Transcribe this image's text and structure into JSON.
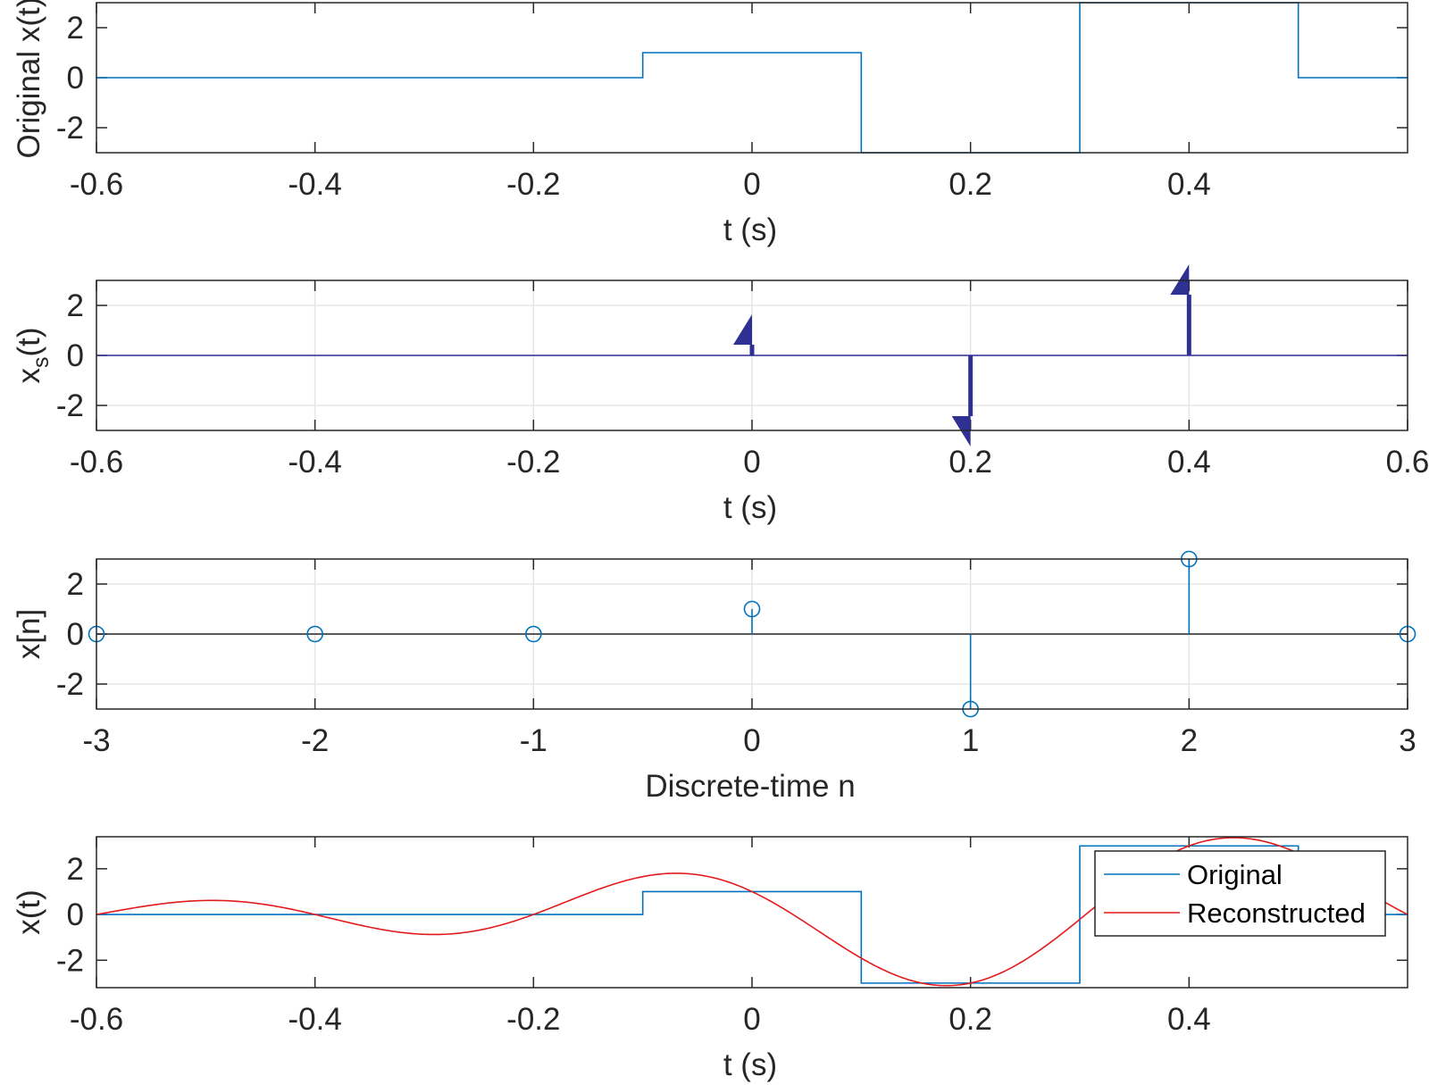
{
  "colors": {
    "original": "#0072BD",
    "reconstructed": "#E31A1C",
    "impulse": "#2E3192",
    "axis": "#262626",
    "grid": "#E6E6E6"
  },
  "chart_data": [
    {
      "type": "line",
      "ylabel": "Original x(t)",
      "xlabel": "t (s)",
      "xlim": [
        -0.6,
        0.6
      ],
      "ylim": [
        -3,
        3
      ],
      "xticks": [
        -0.6,
        -0.4,
        -0.2,
        0,
        0.2,
        0.4
      ],
      "xtick_labels": [
        "-0.6",
        "-0.4",
        "-0.2",
        "0",
        "0.2",
        "0.4"
      ],
      "yticks": [
        -2,
        0,
        2
      ],
      "ytick_labels": [
        "-2",
        "0",
        "2"
      ],
      "grid": false,
      "series": [
        {
          "color": "#0072BD",
          "x": [
            -0.6,
            -0.1,
            -0.1,
            0.1,
            0.1,
            0.3,
            0.3,
            0.5,
            0.5,
            0.6
          ],
          "y": [
            0,
            0,
            1,
            1,
            -3,
            -3,
            3,
            3,
            0,
            0
          ]
        }
      ]
    },
    {
      "type": "stem",
      "ylabel": "x_s(t)",
      "xlabel": "t (s)",
      "xlim": [
        -0.6,
        0.6
      ],
      "ylim": [
        -3,
        3
      ],
      "xticks": [
        -0.6,
        -0.4,
        -0.2,
        0,
        0.2,
        0.4,
        0.6
      ],
      "xtick_labels": [
        "-0.6",
        "-0.4",
        "-0.2",
        "0",
        "0.2",
        "0.4",
        "0.6"
      ],
      "yticks": [
        -2,
        0,
        2
      ],
      "ytick_labels": [
        "-2",
        "0",
        "2"
      ],
      "grid": true,
      "impulses": [
        {
          "t": 0,
          "value": 1
        },
        {
          "t": 0.2,
          "value": -3
        },
        {
          "t": 0.4,
          "value": 3
        }
      ]
    },
    {
      "type": "stem",
      "ylabel": "x[n]",
      "xlabel": "Discrete-time n",
      "xlim": [
        -3,
        3
      ],
      "ylim": [
        -3,
        3
      ],
      "xticks": [
        -3,
        -2,
        -1,
        0,
        1,
        2,
        3
      ],
      "xtick_labels": [
        "-3",
        "-2",
        "-1",
        "0",
        "1",
        "2",
        "3"
      ],
      "yticks": [
        -2,
        0,
        2
      ],
      "ytick_labels": [
        "-2",
        "0",
        "2"
      ],
      "grid": true,
      "n": [
        -3,
        -2,
        -1,
        0,
        1,
        2,
        3
      ],
      "values": [
        0,
        0,
        0,
        1,
        -3,
        3,
        0
      ]
    },
    {
      "type": "line",
      "ylabel": "x(t)",
      "xlabel": "t (s)",
      "xlim": [
        -0.6,
        0.6
      ],
      "ylim": [
        -3.2,
        3.4
      ],
      "xticks": [
        -0.6,
        -0.4,
        -0.2,
        0,
        0.2,
        0.4
      ],
      "xtick_labels": [
        "-0.6",
        "-0.4",
        "-0.2",
        "0",
        "0.2",
        "0.4"
      ],
      "yticks": [
        -2,
        0,
        2
      ],
      "ytick_labels": [
        "-2",
        "0",
        "2"
      ],
      "grid": false,
      "legend": {
        "location": "top-right",
        "entries": [
          "Original",
          "Reconstructed"
        ]
      },
      "series": [
        {
          "name": "Original",
          "color": "#0072BD",
          "x": [
            -0.6,
            -0.1,
            -0.1,
            0.1,
            0.1,
            0.3,
            0.3,
            0.5,
            0.5,
            0.6
          ],
          "y": [
            0,
            0,
            1,
            1,
            -3,
            -3,
            3,
            3,
            0,
            0
          ]
        },
        {
          "name": "Reconstructed",
          "color": "#E31A1C",
          "interpolation": "sinc",
          "sample_period": 0.2,
          "samples_t": [
            -0.6,
            -0.4,
            -0.2,
            0,
            0.2,
            0.4,
            0.6
          ],
          "samples_y": [
            0,
            0,
            0,
            1,
            -3,
            3,
            0
          ]
        }
      ]
    }
  ]
}
